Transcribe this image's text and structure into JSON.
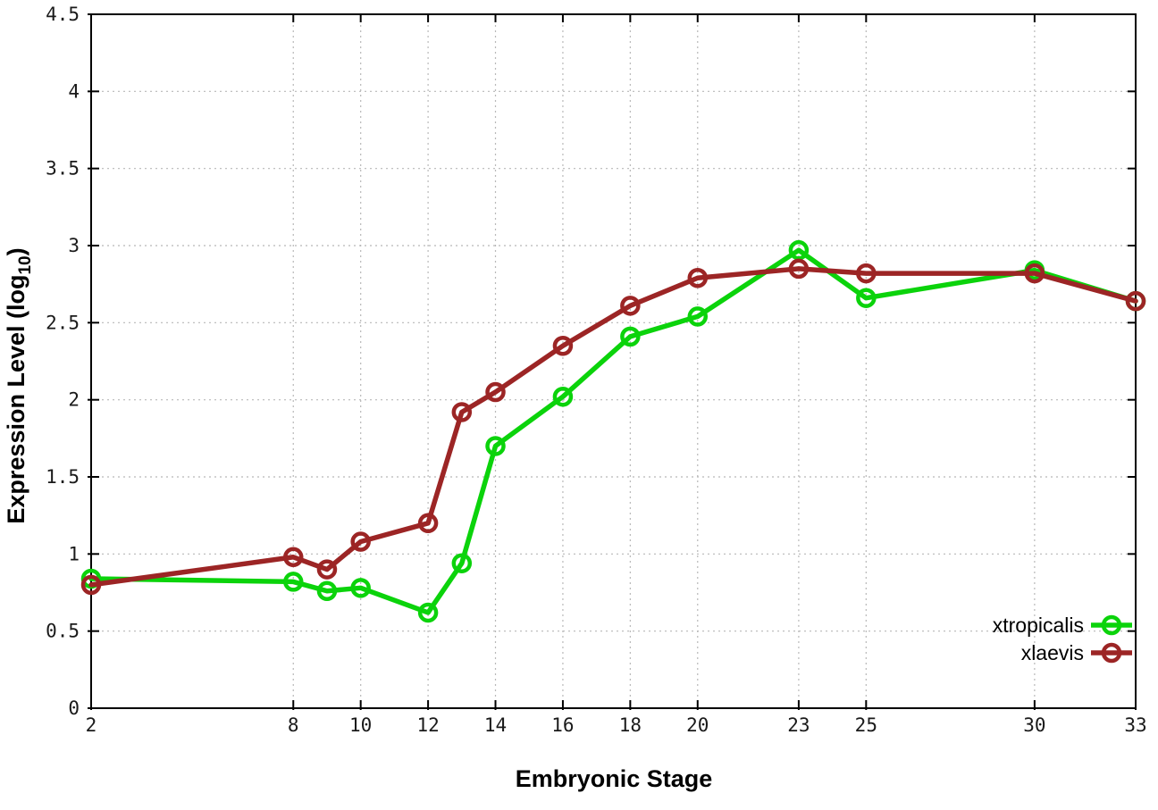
{
  "chart_data": {
    "type": "line",
    "title": "",
    "xlabel": "Embryonic Stage",
    "ylabel_prefix": "Expression Level (log",
    "ylabel_sub": "10",
    "ylabel_suffix": ")",
    "x": [
      2,
      8,
      9,
      10,
      12,
      13,
      14,
      16,
      18,
      20,
      23,
      25,
      30,
      33
    ],
    "series": [
      {
        "name": "xtropicalis",
        "color": "#0bd30b",
        "values": [
          0.84,
          0.82,
          0.76,
          0.78,
          0.62,
          0.94,
          1.7,
          2.02,
          2.41,
          2.54,
          2.97,
          2.66,
          2.84,
          2.64
        ]
      },
      {
        "name": "xlaevis",
        "color": "#9c2525",
        "values": [
          0.8,
          0.98,
          0.9,
          1.08,
          1.2,
          1.92,
          2.05,
          2.35,
          2.61,
          2.79,
          2.85,
          2.82,
          2.82,
          2.64
        ]
      }
    ],
    "xticks": [
      2,
      8,
      10,
      12,
      14,
      16,
      18,
      20,
      23,
      25,
      30,
      33
    ],
    "yticks": [
      0,
      0.5,
      1,
      1.5,
      2,
      2.5,
      3,
      3.5,
      4,
      4.5
    ],
    "xlim": [
      2,
      33
    ],
    "ylim": [
      0,
      4.5
    ],
    "grid": true,
    "legend_position": "inside-bottom-right",
    "background": "#ffffff",
    "grid_color": "#b8b8b8",
    "axis_color": "#000000"
  }
}
